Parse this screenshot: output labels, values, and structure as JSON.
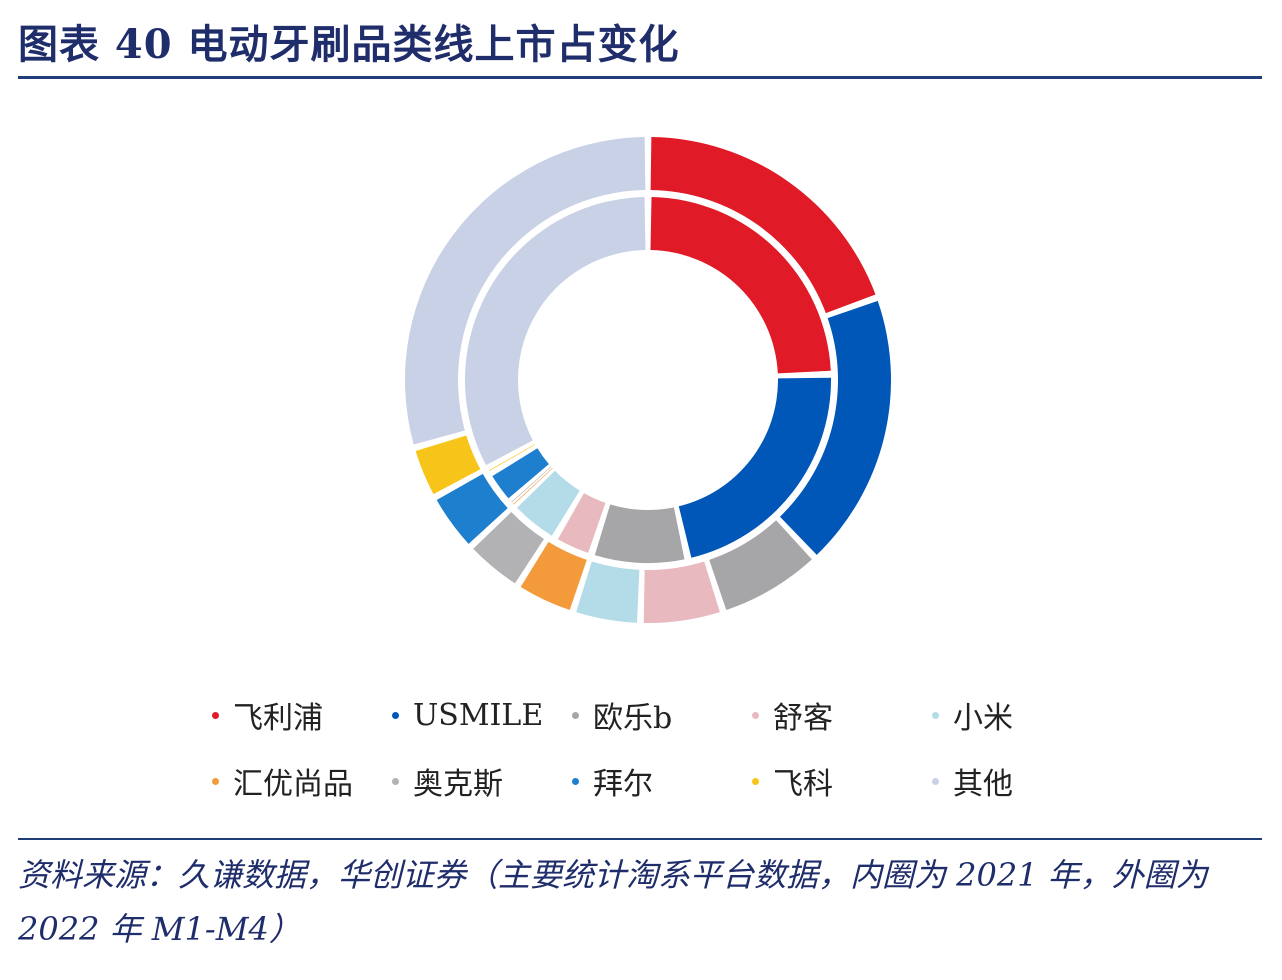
{
  "title": "图表 40  电动牙刷品类线上市占变化",
  "source_note": "资料来源：久谦数据，华创证券（主要统计淘系平台数据，内圈为 2021 年，外圈为 2022 年 M1-M4）",
  "chart_data": {
    "type": "donut",
    "rings": [
      {
        "name": "2021",
        "position": "inner",
        "values": [
          24.5,
          22.0,
          8.5,
          3.5,
          4.5,
          0.25,
          0.25,
          3.0,
          0.5,
          33.0
        ]
      },
      {
        "name": "2022 M1-M4",
        "position": "outer",
        "values": [
          19.5,
          18.5,
          7.0,
          5.5,
          4.5,
          4.0,
          4.0,
          4.0,
          3.5,
          29.5
        ]
      }
    ],
    "categories": [
      "飞利浦",
      "USMILE",
      "欧乐b",
      "舒客",
      "小米",
      "汇优尚品",
      "奥克斯",
      "拜尔",
      "飞科",
      "其他"
    ],
    "colors": [
      "#e01a26",
      "#0057b8",
      "#a6a6a8",
      "#e8b9bf",
      "#b3dce8",
      "#f39a3b",
      "#b2b2b4",
      "#1e7fce",
      "#f7c51a",
      "#c8d1e6"
    ],
    "legend_position": "bottom"
  }
}
